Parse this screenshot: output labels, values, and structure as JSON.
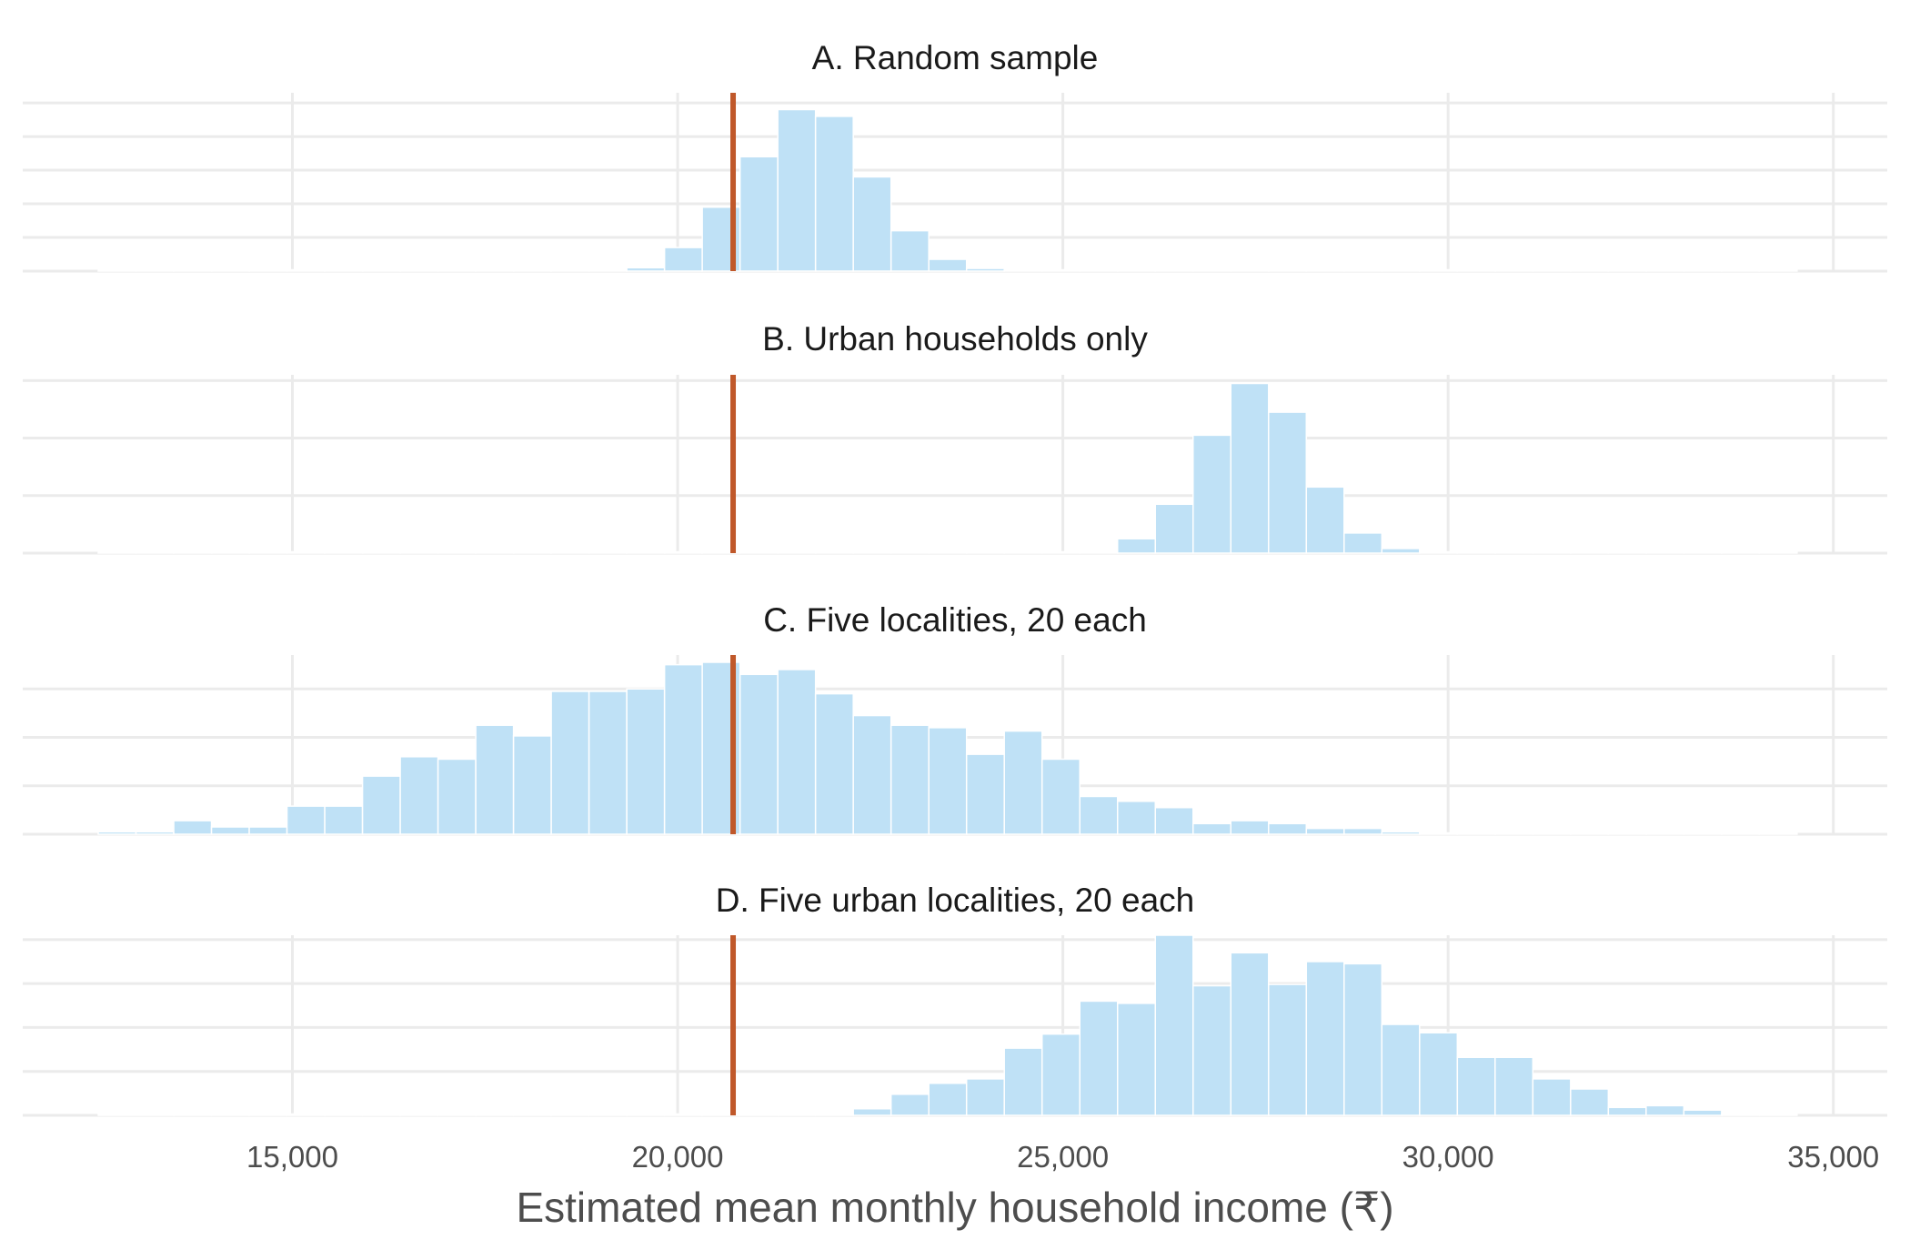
{
  "chart_data": {
    "type": "histogram",
    "layout": "stacked facets sharing x axis",
    "xlabel": "Estimated mean monthly household income (₹)",
    "xlim": [
      11500,
      35700
    ],
    "x_ticks": [
      15000,
      20000,
      25000,
      30000,
      35000
    ],
    "x_tick_labels": [
      "15,000",
      "20,000",
      "25,000",
      "30,000",
      "35,000"
    ],
    "y_axis_labels_shown": false,
    "grid": true,
    "reference_line": {
      "x": 20720,
      "color": "#c0582a"
    },
    "bar_color": "#bfe1f6",
    "bar_edge_color": "#ffffff",
    "bin_start": 12480,
    "bin_width": 490,
    "panels": [
      {
        "title": "A. Random sample",
        "ymax": 5.3,
        "y_gridlines": [
          0,
          1,
          2,
          3,
          4,
          5
        ],
        "counts": [
          0,
          0,
          0,
          0,
          0,
          0,
          0,
          0,
          0,
          0,
          0,
          0,
          0,
          0,
          0.1,
          0.7,
          1.9,
          3.4,
          4.8,
          4.6,
          2.8,
          1.2,
          0.35,
          0.08,
          0,
          0,
          0,
          0,
          0,
          0,
          0,
          0,
          0,
          0,
          0,
          0,
          0,
          0,
          0,
          0,
          0,
          0,
          0,
          0,
          0
        ]
      },
      {
        "title": "B. Urban households only",
        "ymax": 3.1,
        "y_gridlines": [
          0,
          1,
          2,
          3
        ],
        "counts": [
          0,
          0,
          0,
          0,
          0,
          0,
          0,
          0,
          0,
          0,
          0,
          0,
          0,
          0,
          0,
          0,
          0,
          0,
          0,
          0,
          0,
          0,
          0,
          0,
          0,
          0,
          0,
          0.25,
          0.85,
          2.05,
          2.95,
          2.45,
          1.15,
          0.35,
          0.08,
          0,
          0,
          0,
          0,
          0,
          0,
          0,
          0,
          0,
          0
        ]
      },
      {
        "title": "C. Five localities, 20 each",
        "ymax": 3.7,
        "y_gridlines": [
          0,
          1,
          2,
          3
        ],
        "counts": [
          0.05,
          0.05,
          0.28,
          0.15,
          0.15,
          0.58,
          0.58,
          1.2,
          1.6,
          1.55,
          2.25,
          2.03,
          2.95,
          2.95,
          3.0,
          3.5,
          3.55,
          3.3,
          3.4,
          2.9,
          2.45,
          2.25,
          2.2,
          1.65,
          2.13,
          1.55,
          0.78,
          0.68,
          0.55,
          0.22,
          0.28,
          0.22,
          0.12,
          0.12,
          0.05,
          0,
          0,
          0,
          0,
          0,
          0,
          0,
          0,
          0,
          0
        ]
      },
      {
        "title": "D. Five urban localities, 20 each",
        "ymax": 4.1,
        "y_gridlines": [
          0,
          1,
          2,
          3,
          4
        ],
        "counts": [
          0,
          0,
          0,
          0,
          0,
          0,
          0,
          0,
          0,
          0,
          0,
          0,
          0,
          0,
          0,
          0,
          0,
          0,
          0,
          0,
          0.15,
          0.48,
          0.73,
          0.83,
          1.53,
          1.85,
          2.6,
          2.55,
          4.1,
          2.95,
          3.7,
          2.98,
          3.5,
          3.45,
          2.07,
          1.88,
          1.32,
          1.32,
          0.83,
          0.6,
          0.18,
          0.22,
          0.12,
          0,
          0
        ]
      }
    ]
  }
}
